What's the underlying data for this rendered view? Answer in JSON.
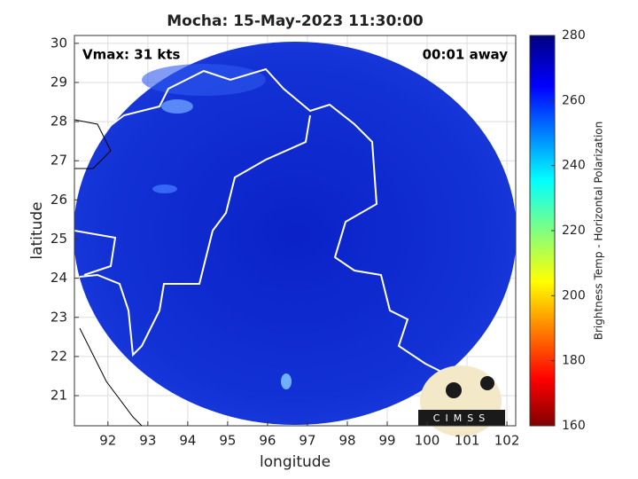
{
  "map": {
    "title": "Mocha: 15-May-2023 11:30:00",
    "vmax": "Vmax: 31 kts",
    "time_away": "00:01 away",
    "xlabel": "longitude",
    "ylabel": "latitude",
    "xlim": [
      91.16,
      102.22
    ],
    "ylim": [
      20.23,
      30.2
    ],
    "xticks": [
      92,
      93,
      94,
      95,
      96,
      97,
      98,
      99,
      100,
      101,
      102
    ],
    "yticks": [
      21,
      22,
      23,
      24,
      25,
      26,
      27,
      28,
      29,
      30
    ],
    "colorbar": {
      "label": "Brightness Temp - Horizontal Polarization",
      "lim": [
        160,
        280
      ],
      "ticks": [
        160,
        180,
        200,
        220,
        240,
        260,
        280
      ]
    },
    "logo": "CIMSS"
  }
}
